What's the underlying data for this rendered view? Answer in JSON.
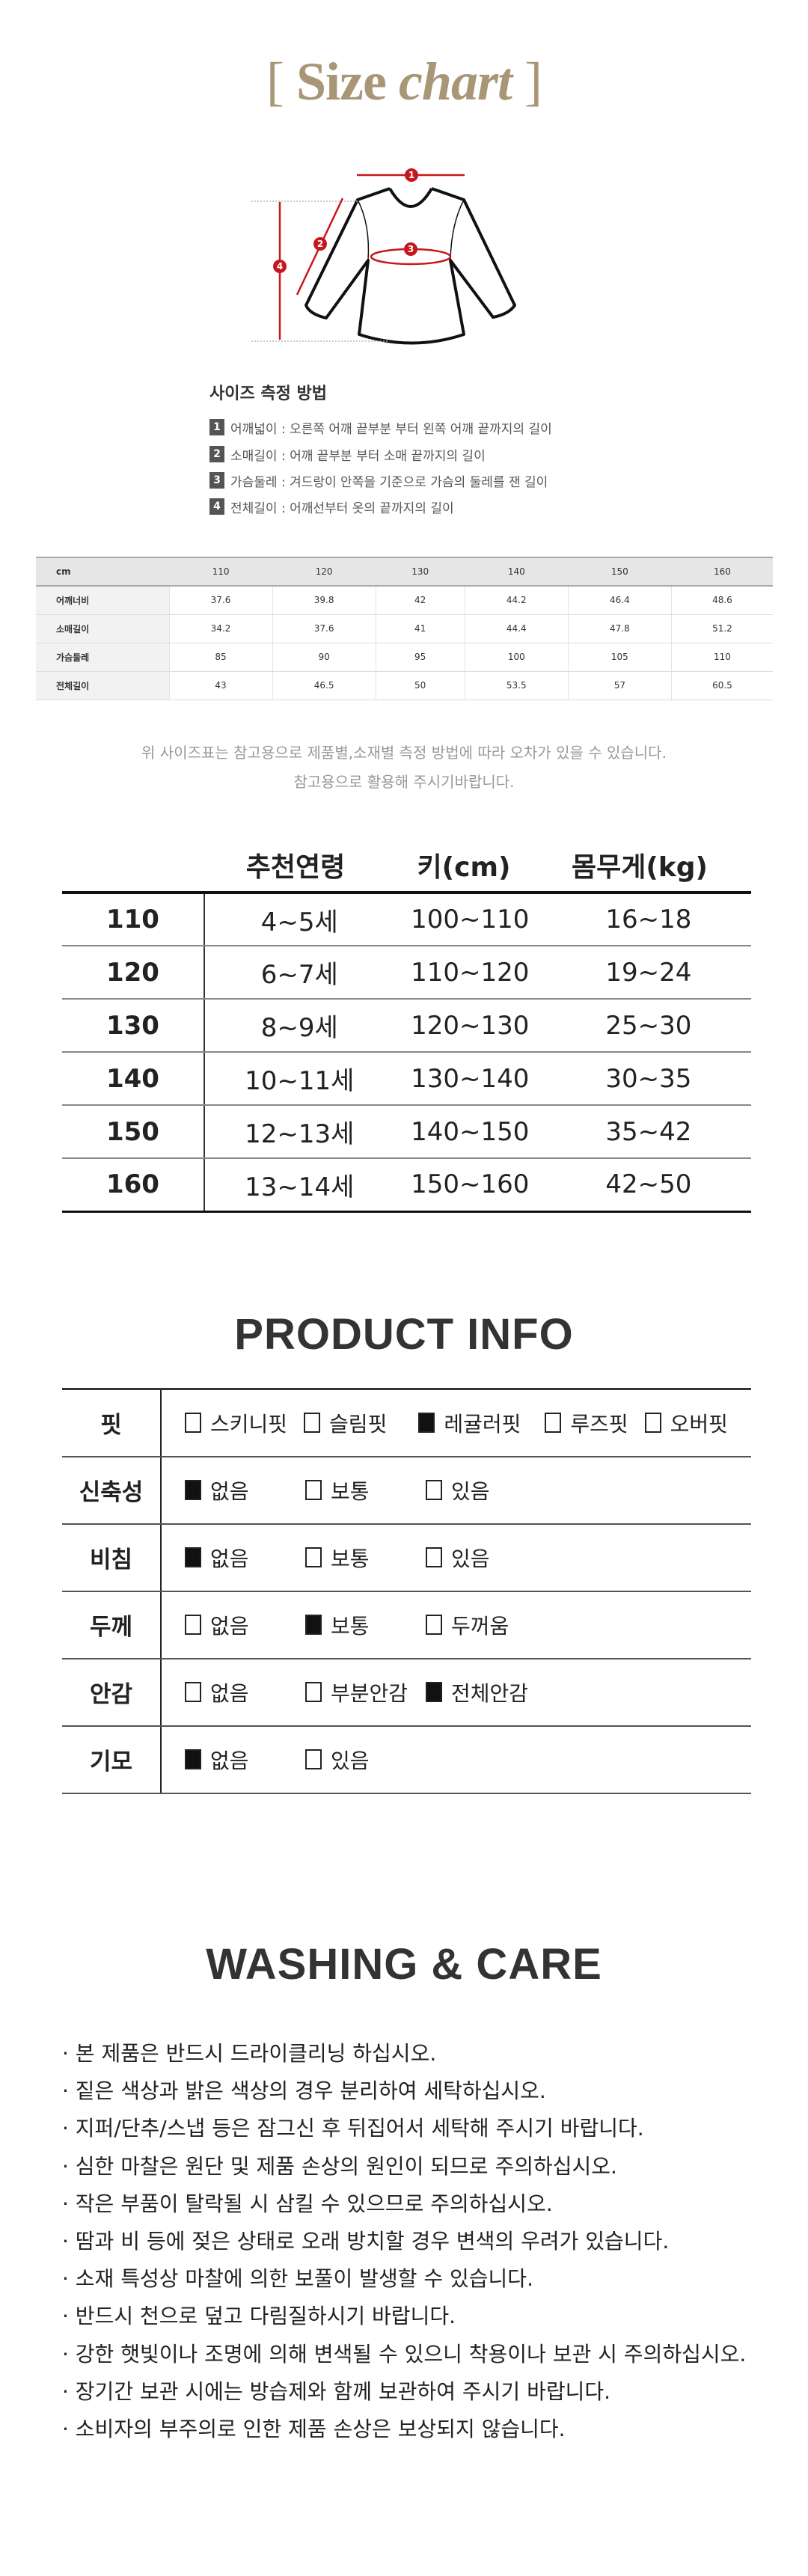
{
  "title": {
    "open": "[",
    "word1": "Size",
    "word2": "chart",
    "close": "]"
  },
  "colors": {
    "title": "#a99676",
    "measure_red": "#c8161d"
  },
  "diagram": {
    "markers": [
      "1",
      "2",
      "3",
      "4"
    ]
  },
  "howto": {
    "title": "사이즈 측정 방법",
    "items": [
      {
        "num": "1",
        "text": "어깨넓이 : 오른쪽 어깨 끝부분 부터 왼쪽 어깨 끝까지의 길이"
      },
      {
        "num": "2",
        "text": "소매길이 : 어깨 끝부분 부터 소매 끝까지의 길이"
      },
      {
        "num": "3",
        "text": "가슴둘레 : 겨드랑이 안쪽을 기준으로 가슴의 둘레를 잰 길이"
      },
      {
        "num": "4",
        "text": "전체길이 : 어깨선부터 옷의 끝까지의 길이"
      }
    ]
  },
  "size_chart": {
    "header": [
      "cm",
      "110",
      "120",
      "130",
      "140",
      "150",
      "160"
    ],
    "rows": [
      [
        "어깨너비",
        "37.6",
        "39.8",
        "42",
        "44.2",
        "46.4",
        "48.6"
      ],
      [
        "소매길이",
        "34.2",
        "37.6",
        "41",
        "44.4",
        "47.8",
        "51.2"
      ],
      [
        "가슴둘레",
        "85",
        "90",
        "95",
        "100",
        "105",
        "110"
      ],
      [
        "전체길이",
        "43",
        "46.5",
        "50",
        "53.5",
        "57",
        "60.5"
      ]
    ]
  },
  "note": {
    "line1": "위 사이즈표는 참고용으로 제품별,소재별 측정 방법에 따라 오차가 있을 수 있습니다.",
    "line2": "참고용으로 활용해 주시기바랍니다."
  },
  "recommend": {
    "header": [
      "",
      "추천연령",
      "키(cm)",
      "몸무게(kg)"
    ],
    "rows": [
      [
        "110",
        "4~5세",
        "100~110",
        "16~18"
      ],
      [
        "120",
        "6~7세",
        "110~120",
        "19~24"
      ],
      [
        "130",
        "8~9세",
        "120~130",
        "25~30"
      ],
      [
        "140",
        "10~11세",
        "130~140",
        "30~35"
      ],
      [
        "150",
        "12~13세",
        "140~150",
        "35~42"
      ],
      [
        "160",
        "13~14세",
        "150~160",
        "42~50"
      ]
    ]
  },
  "product_info": {
    "title": "PRODUCT INFO",
    "rows": [
      {
        "label": "핏",
        "options": [
          {
            "text": "스키니핏",
            "checked": false
          },
          {
            "text": "슬림핏",
            "checked": false
          },
          {
            "text": "레귤러핏",
            "checked": true
          },
          {
            "text": "루즈핏",
            "checked": false
          },
          {
            "text": "오버핏",
            "checked": false
          }
        ]
      },
      {
        "label": "신축성",
        "options": [
          {
            "text": "없음",
            "checked": true
          },
          {
            "text": "보통",
            "checked": false
          },
          {
            "text": "있음",
            "checked": false
          }
        ]
      },
      {
        "label": "비침",
        "options": [
          {
            "text": "없음",
            "checked": true
          },
          {
            "text": "보통",
            "checked": false
          },
          {
            "text": "있음",
            "checked": false
          }
        ]
      },
      {
        "label": "두께",
        "options": [
          {
            "text": "없음",
            "checked": false
          },
          {
            "text": "보통",
            "checked": true
          },
          {
            "text": "두꺼움",
            "checked": false
          }
        ]
      },
      {
        "label": "안감",
        "options": [
          {
            "text": "없음",
            "checked": false
          },
          {
            "text": "부분안감",
            "checked": false
          },
          {
            "text": "전체안감",
            "checked": true
          }
        ]
      },
      {
        "label": "기모",
        "options": [
          {
            "text": "없음",
            "checked": true
          },
          {
            "text": "있음",
            "checked": false
          }
        ]
      }
    ]
  },
  "care": {
    "title": "WASHING & CARE",
    "items": [
      "· 본 제품은 반드시 드라이클리닝 하십시오.",
      "· 짙은 색상과 밝은 색상의 경우 분리하여 세탁하십시오.",
      "· 지퍼/단추/스냅 등은 잠그신 후 뒤집어서 세탁해 주시기 바랍니다.",
      "· 심한 마찰은 원단 및 제품 손상의 원인이 되므로 주의하십시오.",
      "· 작은 부품이 탈락될 시 삼킬 수 있으므로 주의하십시오.",
      "· 땀과 비 등에 젖은 상태로 오래 방치할 경우 변색의 우려가 있습니다.",
      "· 소재 특성상 마찰에 의한 보풀이 발생할 수 있습니다.",
      "· 반드시 천으로 덮고 다림질하시기 바랍니다.",
      "· 강한 햇빛이나 조명에 의해 변색될 수 있으니 착용이나 보관 시 주의하십시오.",
      "· 장기간 보관 시에는 방습제와 함께 보관하여 주시기 바랍니다.",
      "· 소비자의 부주의로 인한 제품 손상은 보상되지 않습니다."
    ]
  }
}
